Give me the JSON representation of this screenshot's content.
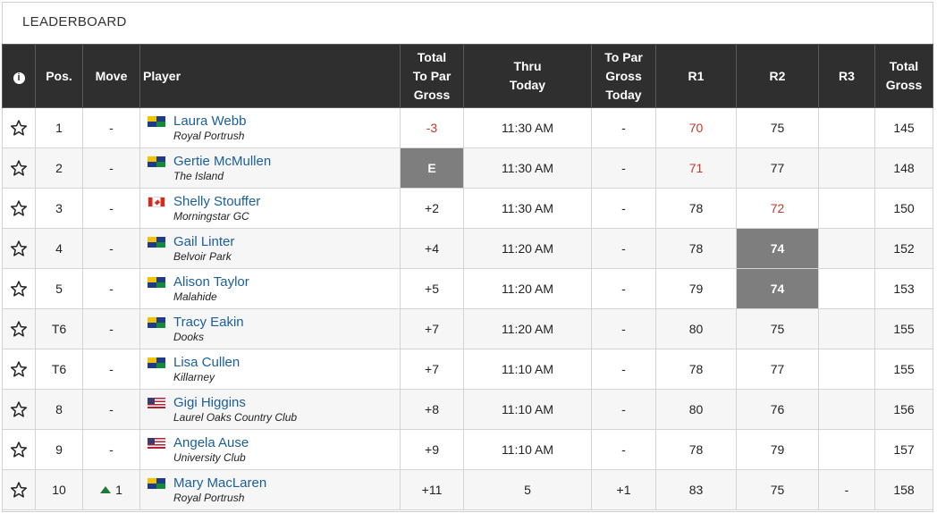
{
  "leaderboard": {
    "title": "LEADERBOARD",
    "headers": {
      "info_icon": "i",
      "pos": "Pos.",
      "move": "Move",
      "player": "Player",
      "total_to_par_gross": [
        "Total",
        "To Par",
        "Gross"
      ],
      "thru_today": [
        "Thru",
        "Today"
      ],
      "to_par_gross_today": [
        "To Par",
        "Gross",
        "Today"
      ],
      "r1": "R1",
      "r2": "R2",
      "r3": "R3",
      "total_gross": [
        "Total",
        "Gross"
      ]
    },
    "colors": {
      "header_bg": "#2f2f2f",
      "link_blue": "#1a5e9c",
      "under_par_red": "#c0392b",
      "highlight_grey": "#7e7e7e",
      "move_up_green": "#1f7a3a"
    },
    "rows": [
      {
        "pos": "1",
        "move": "-",
        "name": "Laura Webb",
        "club": "Royal Portrush",
        "flag": "ni-flag-icon",
        "total_to_par": "-3",
        "thru": "11:30 AM",
        "to_par_today": "-",
        "r1": "70",
        "r2": "75",
        "r3": "",
        "total": "145",
        "total_style": "red",
        "r1_style": "red",
        "r2_style": ""
      },
      {
        "pos": "2",
        "move": "-",
        "name": "Gertie McMullen",
        "club": "The Island",
        "flag": "ni-flag-icon",
        "total_to_par": "E",
        "thru": "11:30 AM",
        "to_par_today": "-",
        "r1": "71",
        "r2": "77",
        "r3": "",
        "total": "148",
        "total_style": "grey",
        "r1_style": "red",
        "r2_style": ""
      },
      {
        "pos": "3",
        "move": "-",
        "name": "Shelly Stouffer",
        "club": "Morningstar GC",
        "flag": "canada-flag-icon",
        "total_to_par": "+2",
        "thru": "11:30 AM",
        "to_par_today": "-",
        "r1": "78",
        "r2": "72",
        "r3": "",
        "total": "150",
        "total_style": "",
        "r1_style": "",
        "r2_style": "red"
      },
      {
        "pos": "4",
        "move": "-",
        "name": "Gail Linter",
        "club": "Belvoir Park",
        "flag": "ni-flag-icon",
        "total_to_par": "+4",
        "thru": "11:20 AM",
        "to_par_today": "-",
        "r1": "78",
        "r2": "74",
        "r3": "",
        "total": "152",
        "total_style": "",
        "r1_style": "",
        "r2_style": "grey"
      },
      {
        "pos": "5",
        "move": "-",
        "name": "Alison Taylor",
        "club": "Malahide",
        "flag": "ni-flag-icon",
        "total_to_par": "+5",
        "thru": "11:20 AM",
        "to_par_today": "-",
        "r1": "79",
        "r2": "74",
        "r3": "",
        "total": "153",
        "total_style": "",
        "r1_style": "",
        "r2_style": "grey"
      },
      {
        "pos": "T6",
        "move": "-",
        "name": "Tracy Eakin",
        "club": "Dooks",
        "flag": "ni-flag-icon",
        "total_to_par": "+7",
        "thru": "11:20 AM",
        "to_par_today": "-",
        "r1": "80",
        "r2": "75",
        "r3": "",
        "total": "155",
        "total_style": "",
        "r1_style": "",
        "r2_style": ""
      },
      {
        "pos": "T6",
        "move": "-",
        "name": "Lisa Cullen",
        "club": "Killarney",
        "flag": "ni-flag-icon",
        "total_to_par": "+7",
        "thru": "11:10 AM",
        "to_par_today": "-",
        "r1": "78",
        "r2": "77",
        "r3": "",
        "total": "155",
        "total_style": "",
        "r1_style": "",
        "r2_style": ""
      },
      {
        "pos": "8",
        "move": "-",
        "name": "Gigi Higgins",
        "club": "Laurel Oaks Country Club",
        "flag": "usa-flag-icon",
        "total_to_par": "+8",
        "thru": "11:10 AM",
        "to_par_today": "-",
        "r1": "80",
        "r2": "76",
        "r3": "",
        "total": "156",
        "total_style": "",
        "r1_style": "",
        "r2_style": ""
      },
      {
        "pos": "9",
        "move": "-",
        "name": "Angela Ause",
        "club": "University Club",
        "flag": "usa-flag-icon",
        "total_to_par": "+9",
        "thru": "11:10 AM",
        "to_par_today": "-",
        "r1": "78",
        "r2": "79",
        "r3": "",
        "total": "157",
        "total_style": "",
        "r1_style": "",
        "r2_style": ""
      },
      {
        "pos": "10",
        "move": "1",
        "move_dir": "up",
        "name": "Mary MacLaren",
        "club": "Royal Portrush",
        "flag": "ni-flag-icon",
        "total_to_par": "+11",
        "thru": "5",
        "to_par_today": "+1",
        "r1": "83",
        "r2": "75",
        "r3": "-",
        "total": "158",
        "total_style": "",
        "r1_style": "",
        "r2_style": ""
      }
    ]
  }
}
